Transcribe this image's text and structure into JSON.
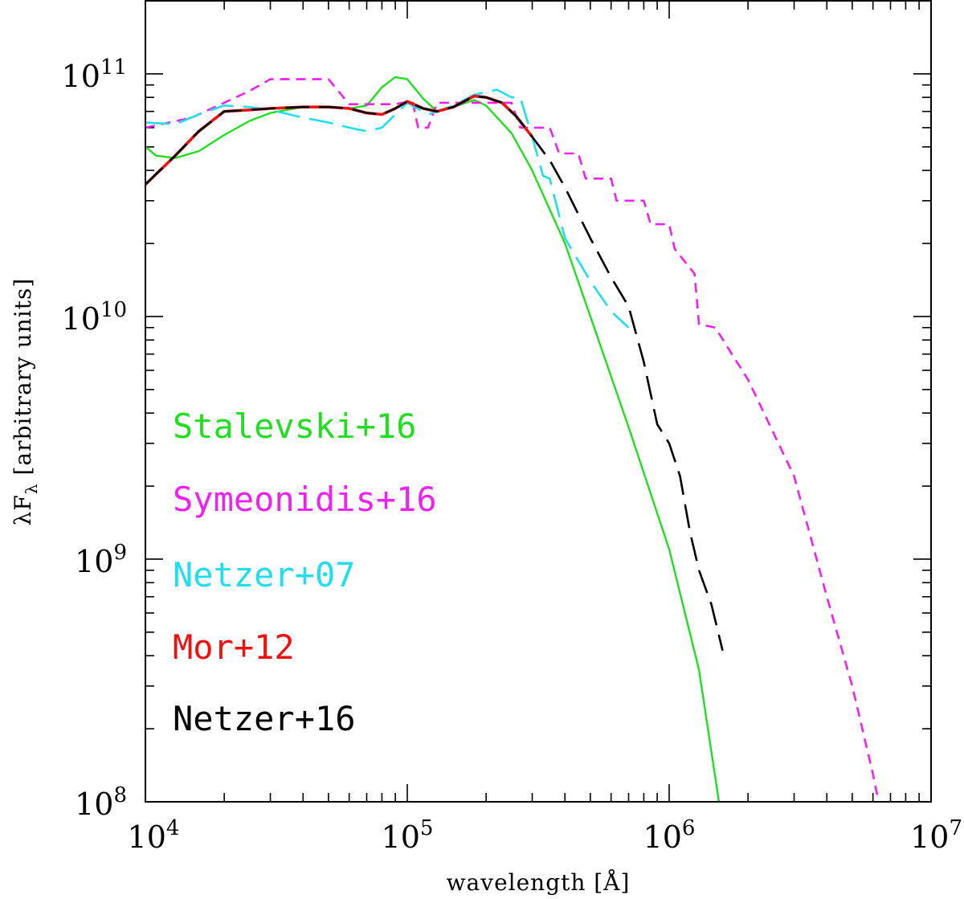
{
  "chart_data": {
    "type": "line",
    "title": "",
    "xlabel": "wavelength [Å]",
    "ylabel": "λF_λ [arbitrary units]",
    "ylabel_parts": {
      "main": "λF",
      "sub": "λ",
      "rest": " [arbitrary units]"
    },
    "xscale": "log",
    "yscale": "log",
    "xlim": [
      10000,
      10000000
    ],
    "ylim": [
      100000000,
      200000000000
    ],
    "x_ticks": [
      {
        "value": 10000,
        "base": "10",
        "exp": "4"
      },
      {
        "value": 100000,
        "base": "10",
        "exp": "5"
      },
      {
        "value": 1000000,
        "base": "10",
        "exp": "6"
      },
      {
        "value": 10000000,
        "base": "10",
        "exp": "7"
      }
    ],
    "y_ticks": [
      {
        "value": 100000000,
        "base": "10",
        "exp": "8"
      },
      {
        "value": 1000000000,
        "base": "10",
        "exp": "9"
      },
      {
        "value": 10000000000,
        "base": "10",
        "exp": "10"
      },
      {
        "value": 100000000000,
        "base": "10",
        "exp": "11"
      }
    ],
    "legend_position": "left",
    "series": [
      {
        "name": "Stalevski+16",
        "color": "#22dd22",
        "style": "solid",
        "x": [
          10000,
          11000,
          13000,
          16000,
          20000,
          25000,
          30000,
          40000,
          50000,
          60000,
          70000,
          80000,
          90000,
          100000,
          115000,
          130000,
          150000,
          180000,
          200000,
          250000,
          300000,
          400000,
          500000,
          700000,
          1000000,
          1300000,
          1550000
        ],
        "y": [
          50000000000,
          46000000000,
          45000000000,
          48000000000,
          56000000000,
          64000000000,
          69000000000,
          73000000000,
          73000000000,
          72000000000,
          74000000000,
          88000000000,
          97000000000,
          95000000000,
          79000000000,
          70000000000,
          73000000000,
          78000000000,
          74000000000,
          57000000000,
          40000000000,
          20000000000,
          10000000000,
          3500000000,
          1100000000,
          350000000,
          100000000
        ]
      },
      {
        "name": "Symeonidis+16",
        "color": "#ee22ee",
        "style": "short-dash",
        "x": [
          10000,
          15000,
          20000,
          25000,
          30000,
          40000,
          50000,
          60000,
          70000,
          80000,
          90000,
          95000,
          105000,
          110000,
          120000,
          130000,
          150000,
          180000,
          200000,
          250000,
          270000,
          300000,
          350000,
          380000,
          450000,
          480000,
          600000,
          630000,
          800000,
          850000,
          1000000,
          1050000,
          1250000,
          1300000,
          1500000,
          2000000,
          3000000,
          4000000,
          5000000,
          6000000,
          6300000
        ],
        "y": [
          60000000000,
          66000000000,
          76000000000,
          85000000000,
          95000000000,
          95000000000,
          95000000000,
          75000000000,
          75000000000,
          75000000000,
          75000000000,
          76000000000,
          76000000000,
          60000000000,
          60000000000,
          76000000000,
          76000000000,
          76000000000,
          76000000000,
          76000000000,
          60000000000,
          60000000000,
          60000000000,
          47000000000,
          47000000000,
          37000000000,
          37000000000,
          30000000000,
          30000000000,
          24000000000,
          24000000000,
          19000000000,
          15000000000,
          9300000000,
          9000000000,
          5500000000,
          2200000000,
          700000000,
          300000000,
          130000000,
          100000000
        ]
      },
      {
        "name": "Netzer+07",
        "color": "#22ddee",
        "style": "long-dash",
        "x": [
          10000,
          13000,
          16000,
          20000,
          25000,
          30000,
          40000,
          50000,
          60000,
          70000,
          80000,
          90000,
          100000,
          120000,
          150000,
          180000,
          220000,
          250000,
          270000,
          300000,
          330000,
          350000,
          400000,
          500000,
          600000,
          700000
        ],
        "y": [
          63000000000,
          62000000000,
          68000000000,
          74000000000,
          73000000000,
          71000000000,
          66000000000,
          63000000000,
          60000000000,
          58000000000,
          60000000000,
          68000000000,
          76000000000,
          68000000000,
          74000000000,
          82000000000,
          86000000000,
          80000000000,
          80000000000,
          55000000000,
          38000000000,
          37000000000,
          21000000000,
          14000000000,
          10500000000,
          9000000000
        ]
      },
      {
        "name": "Mor+12",
        "color": "#ee1111",
        "style": "solid-thick",
        "x": [
          10000,
          13000,
          16000,
          20000,
          25000,
          30000,
          40000,
          50000,
          60000,
          70000,
          80000,
          90000,
          100000,
          115000,
          130000,
          150000,
          180000,
          200000,
          230000,
          260000,
          300000
        ],
        "y": [
          35000000000,
          46000000000,
          58000000000,
          70000000000,
          71000000000,
          72000000000,
          73000000000,
          73000000000,
          72000000000,
          69000000000,
          68000000000,
          72000000000,
          77000000000,
          72000000000,
          70000000000,
          73000000000,
          81000000000,
          80000000000,
          76000000000,
          67000000000,
          55000000000
        ]
      },
      {
        "name": "Netzer+16",
        "color": "#000000",
        "style": "long-dash",
        "x": [
          10000,
          13000,
          16000,
          20000,
          25000,
          30000,
          40000,
          50000,
          60000,
          70000,
          80000,
          90000,
          100000,
          115000,
          130000,
          150000,
          180000,
          200000,
          230000,
          260000,
          300000,
          350000,
          400000,
          500000,
          600000,
          700000,
          800000,
          900000,
          1000000,
          1100000,
          1200000,
          1300000,
          1450000,
          1600000
        ],
        "y": [
          35000000000,
          46000000000,
          58000000000,
          70000000000,
          71000000000,
          72000000000,
          73000000000,
          73000000000,
          72000000000,
          69000000000,
          68000000000,
          72000000000,
          77000000000,
          72000000000,
          70000000000,
          73000000000,
          81000000000,
          80000000000,
          76000000000,
          67000000000,
          55000000000,
          44000000000,
          34000000000,
          21000000000,
          14500000000,
          11000000000,
          6500000000,
          3600000000,
          3000000000,
          2200000000,
          1300000000,
          900000000,
          650000000,
          420000000
        ]
      }
    ]
  }
}
